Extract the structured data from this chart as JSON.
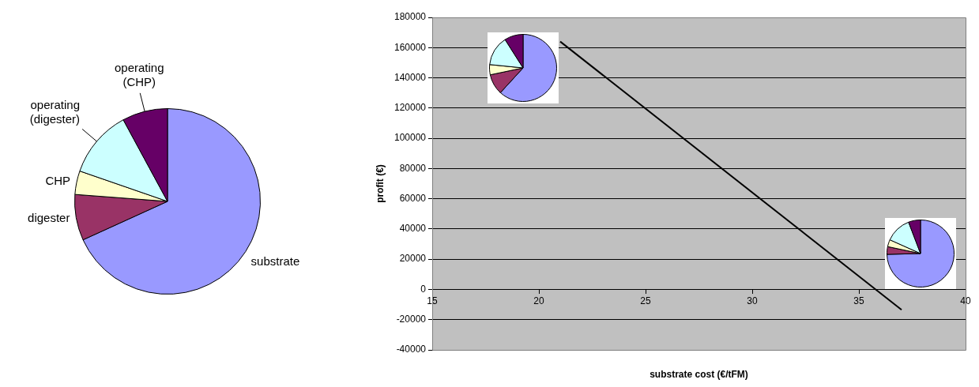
{
  "chart_data": [
    {
      "type": "pie",
      "categories": [
        "substrate",
        "digester",
        "CHP",
        "operating (digester)",
        "operating (CHP)"
      ],
      "values": [
        68.2,
        8.0,
        4.1,
        11.8,
        7.9
      ],
      "colors": [
        "#9999ff",
        "#993366",
        "#ffffcc",
        "#ccffff",
        "#660066"
      ]
    },
    {
      "type": "line",
      "xlabel": "substrate cost (€/tFM)",
      "ylabel": "profit (€)",
      "xlim": [
        15,
        40
      ],
      "xticks": [
        15,
        20,
        25,
        30,
        35,
        40
      ],
      "ylim": [
        -40000,
        180000
      ],
      "yticks": [
        -40000,
        -20000,
        0,
        20000,
        40000,
        60000,
        80000,
        100000,
        120000,
        140000,
        160000,
        180000
      ],
      "grid": "y",
      "legend": false,
      "marker": "none",
      "line_style": "solid",
      "series": [
        {
          "color": "#000000",
          "x": [
            21,
            37
          ],
          "values": [
            164000,
            -13500
          ]
        }
      ]
    },
    {
      "type": "pie",
      "categories": [
        null,
        null,
        null,
        null,
        null
      ],
      "values": [
        61.8,
        9.9,
        4.9,
        14.4,
        9.0
      ],
      "colors": [
        "#9999ff",
        "#993366",
        "#ffffcc",
        "#ccffff",
        "#660066"
      ]
    },
    {
      "type": "pie",
      "categories": [
        null,
        null,
        null,
        null,
        null
      ],
      "values": [
        74.6,
        3.7,
        3.4,
        12.5,
        5.8
      ],
      "colors": [
        "#9999ff",
        "#993366",
        "#ffffcc",
        "#ccffff",
        "#660066"
      ]
    }
  ]
}
